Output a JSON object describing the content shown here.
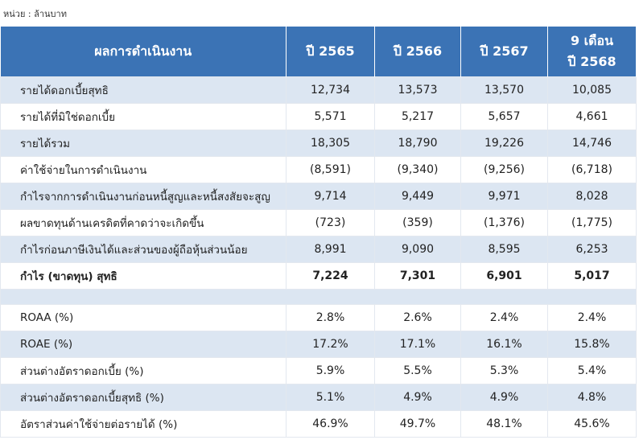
{
  "unit": "หน่วย : ล้านบาท",
  "table": {
    "header": {
      "label": "ผลการดำเนินงาน",
      "columns": [
        "ปี 2565",
        "ปี 2566",
        "ปี 2567",
        [
          "9 เดือน",
          "ปี 2568"
        ]
      ]
    },
    "rows": [
      {
        "label": "รายได้ดอกเบี้ยสุทธิ",
        "values": [
          "12,734",
          "13,573",
          "13,570",
          "10,085"
        ]
      },
      {
        "label": "รายได้ที่มิใช่ดอกเบี้ย",
        "values": [
          "5,571",
          "5,217",
          "5,657",
          "4,661"
        ]
      },
      {
        "label": "รายได้รวม",
        "values": [
          "18,305",
          "18,790",
          "19,226",
          "14,746"
        ]
      },
      {
        "label": "ค่าใช้จ่ายในการดำเนินงาน",
        "values": [
          "(8,591)",
          "(9,340)",
          "(9,256)",
          "(6,718)"
        ]
      },
      {
        "label": "กำไรจากการดำเนินงานก่อนหนี้สูญและหนี้สงสัยจะสูญ",
        "values": [
          "9,714",
          "9,449",
          "9,971",
          "8,028"
        ]
      },
      {
        "label": "ผลขาดทุนด้านเครดิตที่คาดว่าจะเกิดขึ้น",
        "values": [
          "(723)",
          "(359)",
          "(1,376)",
          "(1,775)"
        ]
      },
      {
        "label": "กำไรก่อนภาษีเงินได้และส่วนของผู้ถือหุ้นส่วนน้อย",
        "values": [
          "8,991",
          "9,090",
          "8,595",
          "6,253"
        ]
      },
      {
        "label": "กำไร (ขาดทุน) สุทธิ",
        "values": [
          "7,224",
          "7,301",
          "6,901",
          "5,017"
        ],
        "bold": true
      }
    ],
    "ratio_rows": [
      {
        "label": "ROAA (%)",
        "values": [
          "2.8%",
          "2.6%",
          "2.4%",
          "2.4%"
        ]
      },
      {
        "label": "ROAE (%)",
        "values": [
          "17.2%",
          "17.1%",
          "16.1%",
          "15.8%"
        ]
      },
      {
        "label": "ส่วนต่างอัตราดอกเบี้ย (%)",
        "values": [
          "5.9%",
          "5.5%",
          "5.3%",
          "5.4%"
        ]
      },
      {
        "label": "ส่วนต่างอัตราดอกเบี้ยสุทธิ (%)",
        "values": [
          "5.1%",
          "4.9%",
          "4.9%",
          "4.8%"
        ]
      },
      {
        "label": "อัตราส่วนค่าใช้จ่ายต่อรายได้ (%)",
        "values": [
          "46.9%",
          "49.7%",
          "48.1%",
          "45.6%"
        ]
      }
    ]
  }
}
